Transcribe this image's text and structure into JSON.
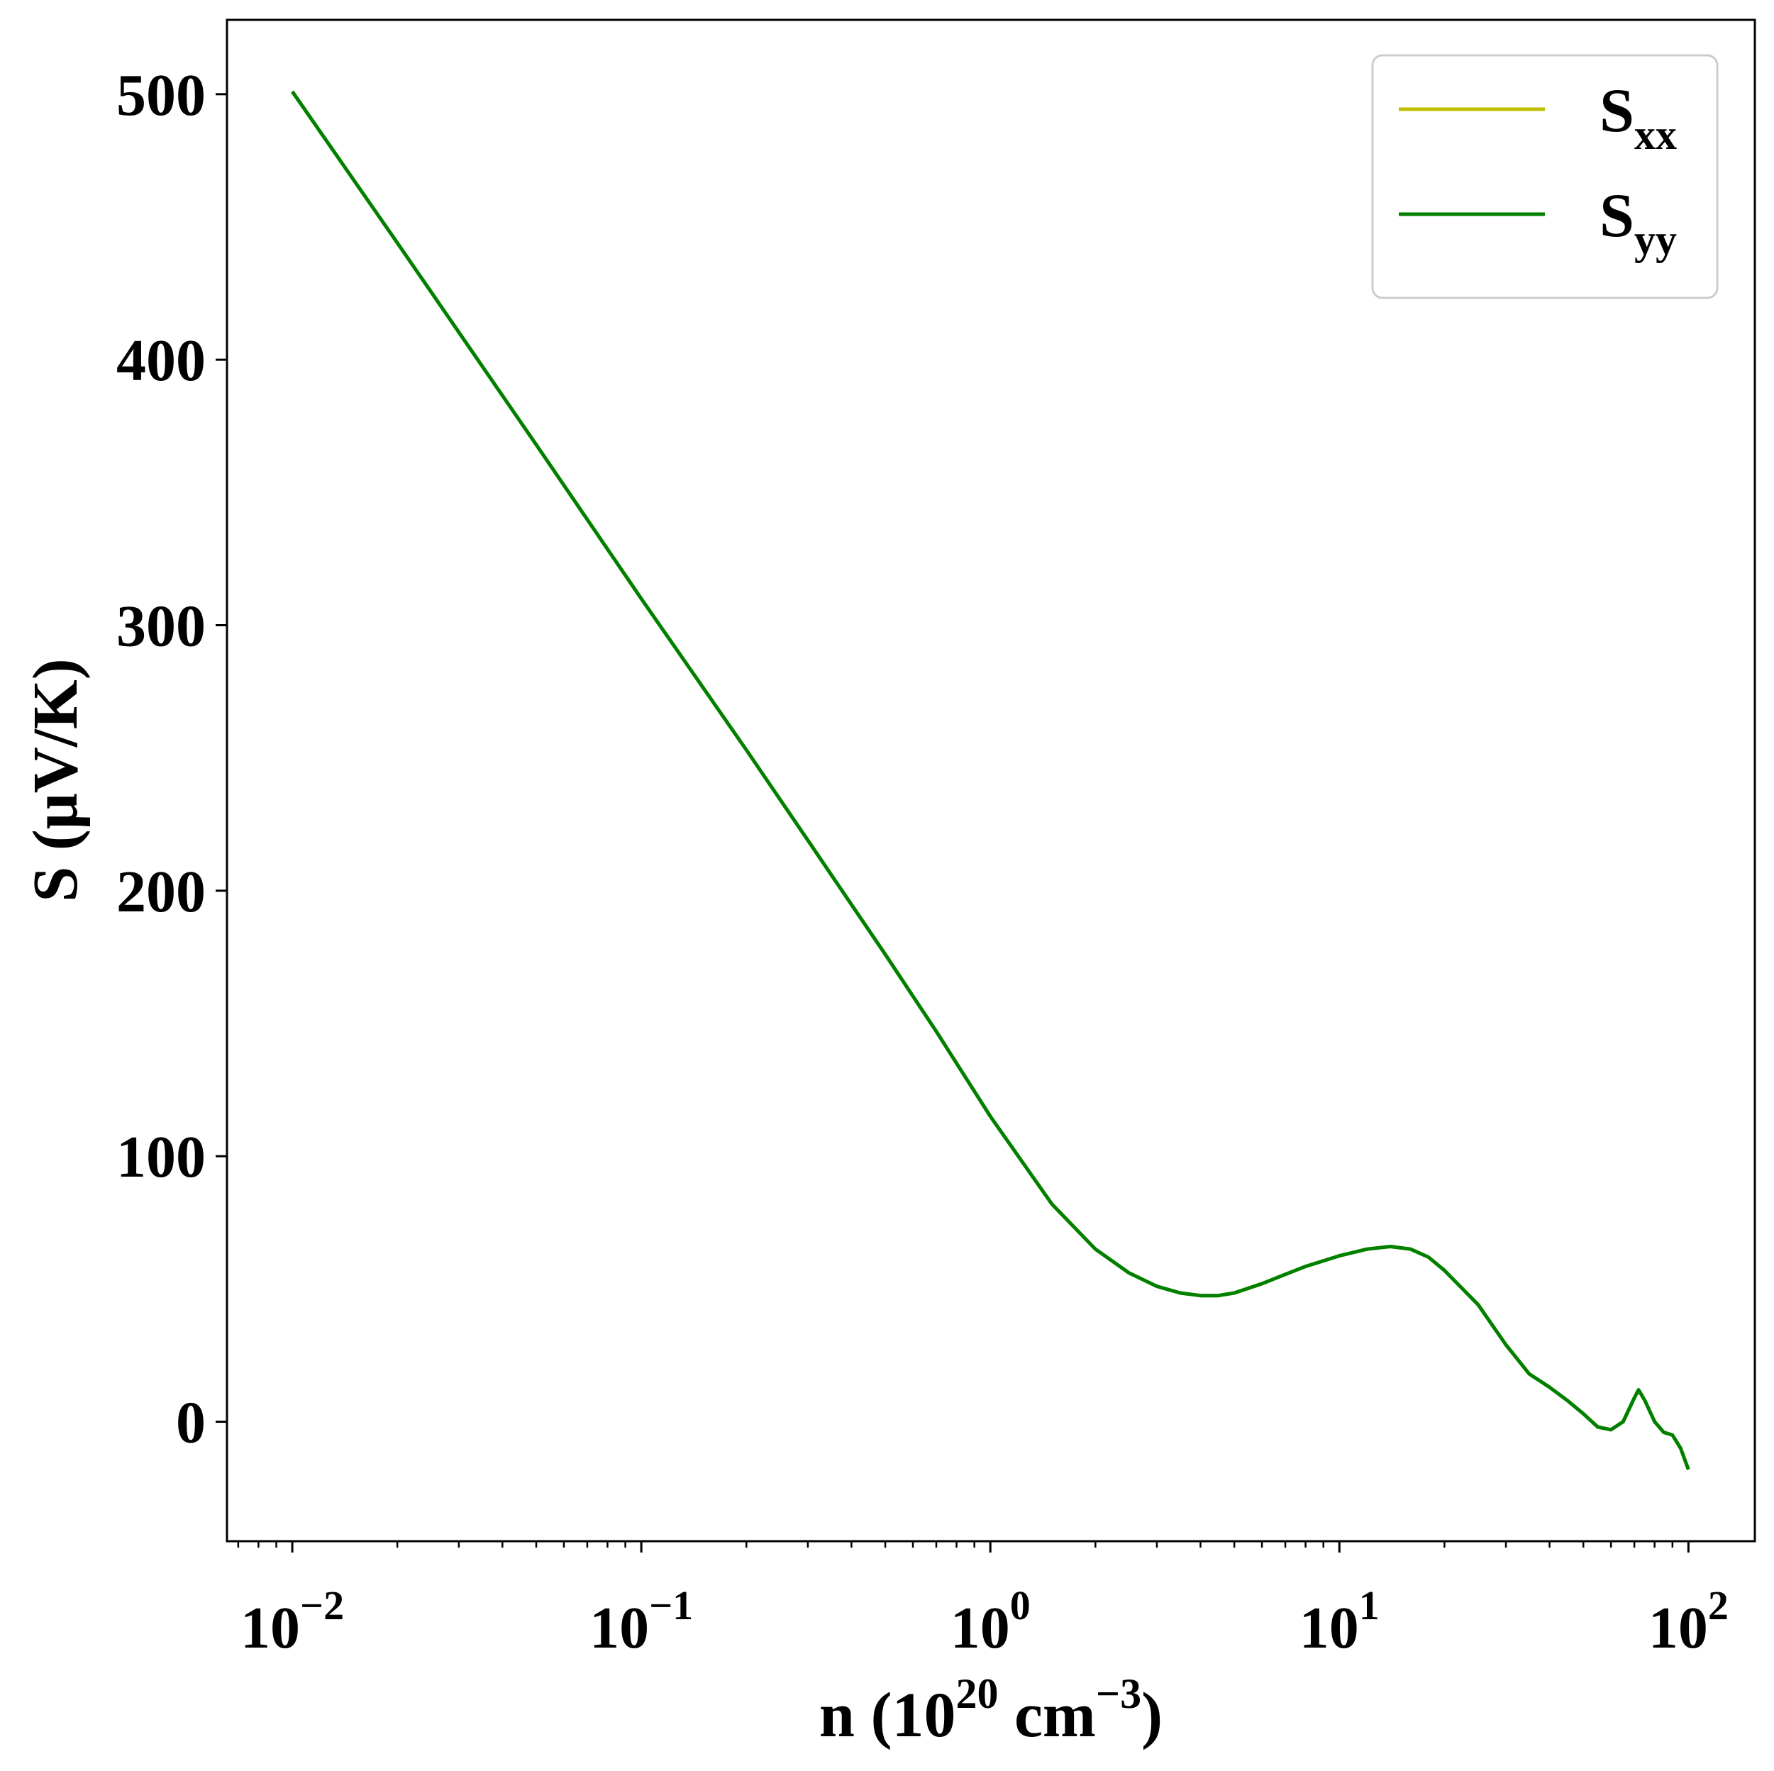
{
  "chart_data": {
    "type": "line",
    "xscale": "log",
    "xlim": [
      0.0065,
      155
    ],
    "ylim": [
      -45,
      528
    ],
    "grid": false,
    "legend_position": "top-right",
    "xlabel": {
      "base": "n (10",
      "sup1": "20",
      "mid": " cm",
      "sup2": "−3",
      "end": ")"
    },
    "ylabel": "S (μV/K)",
    "x_ticks": [
      {
        "value": 0.01,
        "base": "10",
        "exp": "−2"
      },
      {
        "value": 0.1,
        "base": "10",
        "exp": "−1"
      },
      {
        "value": 1,
        "base": "10",
        "exp": "0"
      },
      {
        "value": 10,
        "base": "10",
        "exp": "1"
      },
      {
        "value": 100,
        "base": "10",
        "exp": "2"
      }
    ],
    "y_ticks": [
      0,
      100,
      200,
      300,
      400,
      500
    ],
    "series": [
      {
        "name": "S",
        "sub": "xx",
        "color": "#bfbf00",
        "x": [
          0.01,
          0.02,
          0.05,
          0.1,
          0.2,
          0.3,
          0.5,
          0.7,
          1.0,
          1.5,
          2.0,
          2.5,
          3.0,
          3.5,
          4.0,
          4.5,
          5.0,
          6.0,
          7.0,
          8.0,
          10.0,
          12.0,
          14.0,
          16.0,
          18.0,
          20.0,
          25.0,
          30.0,
          35.0,
          40.0,
          45.0,
          50.0,
          55.0,
          60.0,
          65.0,
          70.0,
          72.0,
          75.0,
          80.0,
          85.0,
          90.0,
          95.0,
          100.0
        ],
        "y": [
          501,
          444,
          368,
          310,
          253,
          219,
          176,
          147,
          115,
          82,
          65,
          56,
          51,
          48.5,
          47.5,
          47.5,
          48.5,
          52,
          55.5,
          58.5,
          62.5,
          65,
          66,
          65,
          62,
          57,
          44,
          29,
          18,
          13,
          8,
          3,
          -2,
          -3,
          0,
          9,
          12,
          8,
          0,
          -4,
          -5,
          -10,
          -18
        ]
      },
      {
        "name": "S",
        "sub": "yy",
        "color": "#008000",
        "x": [
          0.01,
          0.02,
          0.05,
          0.1,
          0.2,
          0.3,
          0.5,
          0.7,
          1.0,
          1.5,
          2.0,
          2.5,
          3.0,
          3.5,
          4.0,
          4.5,
          5.0,
          6.0,
          7.0,
          8.0,
          10.0,
          12.0,
          14.0,
          16.0,
          18.0,
          20.0,
          25.0,
          30.0,
          35.0,
          40.0,
          45.0,
          50.0,
          55.0,
          60.0,
          65.0,
          70.0,
          72.0,
          75.0,
          80.0,
          85.0,
          90.0,
          95.0,
          100.0
        ],
        "y": [
          501,
          444,
          368,
          310,
          253,
          219,
          176,
          147,
          115,
          82,
          65,
          56,
          51,
          48.5,
          47.5,
          47.5,
          48.5,
          52,
          55.5,
          58.5,
          62.5,
          65,
          66,
          65,
          62,
          57,
          44,
          29,
          18,
          13,
          8,
          3,
          -2,
          -3,
          0,
          9,
          12,
          8,
          0,
          -4,
          -5,
          -10,
          -18
        ]
      }
    ]
  }
}
